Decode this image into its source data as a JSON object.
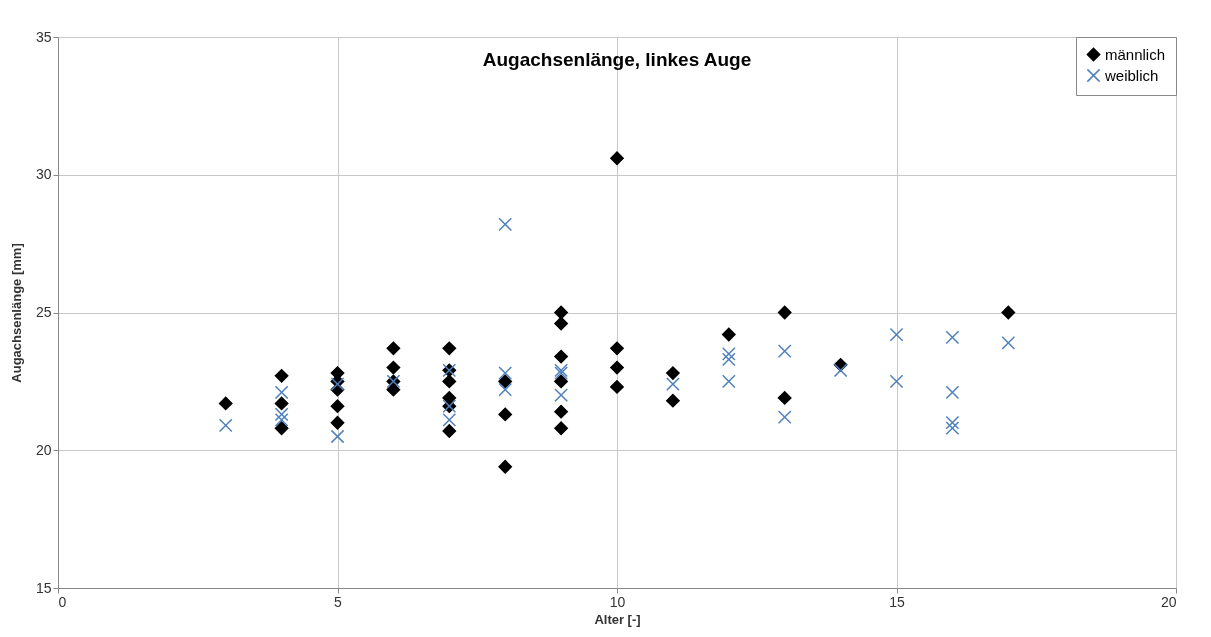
{
  "chart_data": {
    "type": "scatter",
    "title": "Augachsenlänge, linkes Auge",
    "xlabel": "Alter [-]",
    "ylabel": "Augachsenlänge [mm]",
    "xlim": [
      0,
      20
    ],
    "xticks": [
      0,
      5,
      10,
      15,
      20
    ],
    "ylim": [
      15,
      35
    ],
    "yticks": [
      15,
      20,
      25,
      30,
      35
    ],
    "grid": true,
    "legend": "top right",
    "series": [
      {
        "name": "männlich",
        "color": "#000000",
        "marker": "diamond",
        "x": [
          3,
          4,
          4,
          4,
          5,
          5,
          5,
          5,
          5,
          6,
          6,
          6,
          6,
          7,
          7,
          7,
          7,
          7,
          7,
          8,
          8,
          8,
          9,
          9,
          9,
          9,
          9,
          9,
          10,
          10,
          10,
          10,
          11,
          11,
          12,
          13,
          13,
          14,
          17
        ],
        "values": [
          21.7,
          22.7,
          21.7,
          20.8,
          22.8,
          22.5,
          22.2,
          21.6,
          21.0,
          23.7,
          23.0,
          22.5,
          22.2,
          23.7,
          22.9,
          22.5,
          21.9,
          21.6,
          20.7,
          22.5,
          21.3,
          19.4,
          25.0,
          24.6,
          23.4,
          22.5,
          21.4,
          20.8,
          30.6,
          23.7,
          23.0,
          22.3,
          22.8,
          21.8,
          24.2,
          25.0,
          21.9,
          23.1,
          25.0
        ]
      },
      {
        "name": "weiblich",
        "color": "#4f81bd",
        "marker": "cross",
        "x": [
          3,
          4,
          4,
          4,
          5,
          5,
          6,
          7,
          7,
          7,
          8,
          8,
          8,
          9,
          9,
          9,
          11,
          12,
          12,
          12,
          13,
          13,
          14,
          15,
          15,
          16,
          16,
          16,
          16,
          17
        ],
        "values": [
          20.9,
          22.1,
          21.3,
          21.1,
          22.4,
          20.5,
          22.5,
          22.9,
          21.6,
          21.1,
          28.2,
          22.8,
          22.2,
          22.9,
          22.8,
          22.0,
          22.4,
          23.5,
          23.3,
          22.5,
          23.6,
          21.2,
          22.9,
          24.2,
          22.5,
          24.1,
          22.1,
          21.0,
          20.8,
          23.9
        ]
      }
    ]
  }
}
